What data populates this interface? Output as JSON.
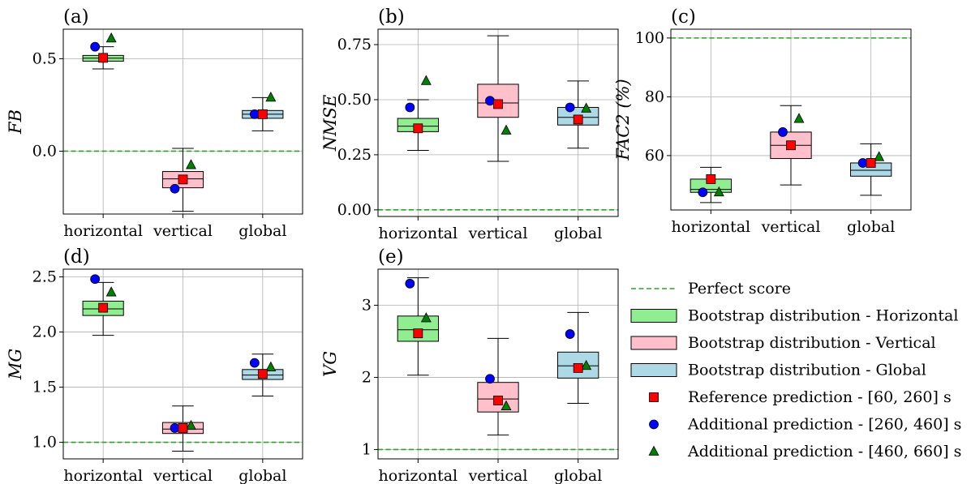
{
  "colors": {
    "horizontal_box": "#90ee90",
    "vertical_box": "#ffc0cb",
    "global_box": "#add8e6",
    "perfect_line": "#2ca02c",
    "reference_marker": "#ff0000",
    "additional_260_marker": "#0000ff",
    "additional_460_marker": "#008000",
    "grid": "#b0b0b0"
  },
  "legend": {
    "placement": "bottom-right",
    "entries": [
      {
        "key": "perfect",
        "label": "Perfect score",
        "style": "dashed-line",
        "color": "#2ca02c"
      },
      {
        "key": "horizontal",
        "label": "Bootstrap distribution - Horizontal",
        "style": "box",
        "color": "#90ee90"
      },
      {
        "key": "vertical",
        "label": "Bootstrap distribution - Vertical",
        "style": "box",
        "color": "#ffc0cb"
      },
      {
        "key": "global",
        "label": "Bootstrap distribution - Global",
        "style": "box",
        "color": "#add8e6"
      },
      {
        "key": "ref",
        "label": "Reference prediction - [60, 260] s",
        "style": "square",
        "color": "#ff0000"
      },
      {
        "key": "add1",
        "label": "Additional prediction - [260, 460] s",
        "style": "circle",
        "color": "#0000ff"
      },
      {
        "key": "add2",
        "label": "Additional prediction - [460, 660] s",
        "style": "triangle",
        "color": "#008000"
      }
    ]
  },
  "chart_data": [
    {
      "type": "box",
      "panel_label": "(a)",
      "ylabel": "FB",
      "categories": [
        "horizontal",
        "vertical",
        "global"
      ],
      "ylim": [
        -0.34,
        0.66
      ],
      "yticks": [
        0.0,
        0.5
      ],
      "ytick_labels": [
        "0.0",
        "0.5"
      ],
      "grid": true,
      "perfect_score": 0.0,
      "boxes": [
        {
          "whislo": 0.445,
          "q1": 0.487,
          "med": 0.503,
          "q3": 0.518,
          "whishi": 0.565
        },
        {
          "whislo": -0.325,
          "q1": -0.198,
          "med": -0.15,
          "q3": -0.11,
          "whishi": 0.015
        },
        {
          "whislo": 0.11,
          "q1": 0.178,
          "med": 0.2,
          "q3": 0.22,
          "whishi": 0.29
        }
      ],
      "reference_prediction": [
        0.505,
        -0.153,
        0.2
      ],
      "additional_prediction_260_460": [
        0.565,
        -0.203,
        0.2
      ],
      "additional_prediction_460_660": [
        0.61,
        -0.075,
        0.29
      ]
    },
    {
      "type": "box",
      "panel_label": "(b)",
      "ylabel": "NMSE",
      "categories": [
        "horizontal",
        "vertical",
        "global"
      ],
      "ylim": [
        -0.03,
        0.82
      ],
      "yticks": [
        0.0,
        0.25,
        0.5,
        0.75
      ],
      "ytick_labels": [
        "0.00",
        "0.25",
        "0.50",
        "0.75"
      ],
      "grid": true,
      "perfect_score": 0.0,
      "boxes": [
        {
          "whislo": 0.27,
          "q1": 0.355,
          "med": 0.38,
          "q3": 0.415,
          "whishi": 0.5
        },
        {
          "whislo": 0.22,
          "q1": 0.42,
          "med": 0.485,
          "q3": 0.57,
          "whishi": 0.79
        },
        {
          "whislo": 0.28,
          "q1": 0.385,
          "med": 0.42,
          "q3": 0.465,
          "whishi": 0.585
        }
      ],
      "reference_prediction": [
        0.37,
        0.48,
        0.41
      ],
      "additional_prediction_260_460": [
        0.465,
        0.495,
        0.465
      ],
      "additional_prediction_460_660": [
        0.585,
        0.36,
        0.46
      ]
    },
    {
      "type": "box",
      "panel_label": "(c)",
      "ylabel": "FAC2 (%)",
      "categories": [
        "horizontal",
        "vertical",
        "global"
      ],
      "ylim": [
        41.5,
        103
      ],
      "yticks": [
        60,
        80,
        100
      ],
      "ytick_labels": [
        "60",
        "80",
        "100"
      ],
      "grid": true,
      "perfect_score": 100,
      "boxes": [
        {
          "whislo": 44,
          "q1": 47.5,
          "med": 48.5,
          "q3": 52,
          "whishi": 56
        },
        {
          "whislo": 50,
          "q1": 59,
          "med": 63.5,
          "q3": 68,
          "whishi": 77
        },
        {
          "whislo": 46.5,
          "q1": 53,
          "med": 55,
          "q3": 57.5,
          "whishi": 64
        }
      ],
      "reference_prediction": [
        52,
        63.5,
        57.5
      ],
      "additional_prediction_260_460": [
        47.5,
        68,
        57.5
      ],
      "additional_prediction_460_660": [
        47.5,
        72.5,
        59.5
      ]
    },
    {
      "type": "box",
      "panel_label": "(d)",
      "ylabel": "MG",
      "categories": [
        "horizontal",
        "vertical",
        "global"
      ],
      "ylim": [
        0.85,
        2.57
      ],
      "yticks": [
        1.0,
        1.5,
        2.0,
        2.5
      ],
      "ytick_labels": [
        "1.0",
        "1.5",
        "2.0",
        "2.5"
      ],
      "grid": true,
      "perfect_score": 1.0,
      "boxes": [
        {
          "whislo": 1.97,
          "q1": 2.15,
          "med": 2.21,
          "q3": 2.28,
          "whishi": 2.45
        },
        {
          "whislo": 0.92,
          "q1": 1.08,
          "med": 1.12,
          "q3": 1.18,
          "whishi": 1.33
        },
        {
          "whislo": 1.42,
          "q1": 1.57,
          "med": 1.61,
          "q3": 1.66,
          "whishi": 1.8
        }
      ],
      "reference_prediction": [
        2.22,
        1.13,
        1.62
      ],
      "additional_prediction_260_460": [
        2.48,
        1.13,
        1.72
      ],
      "additional_prediction_460_660": [
        2.36,
        1.15,
        1.68
      ]
    },
    {
      "type": "box",
      "panel_label": "(e)",
      "ylabel": "VG",
      "categories": [
        "horizontal",
        "vertical",
        "global"
      ],
      "ylim": [
        0.87,
        3.5
      ],
      "yticks": [
        1,
        2,
        3
      ],
      "ytick_labels": [
        "1",
        "2",
        "3"
      ],
      "grid": true,
      "perfect_score": 1,
      "boxes": [
        {
          "whislo": 2.03,
          "q1": 2.5,
          "med": 2.66,
          "q3": 2.85,
          "whishi": 3.38
        },
        {
          "whislo": 1.2,
          "q1": 1.52,
          "med": 1.7,
          "q3": 1.93,
          "whishi": 2.54
        },
        {
          "whislo": 1.64,
          "q1": 1.99,
          "med": 2.16,
          "q3": 2.35,
          "whishi": 2.9
        }
      ],
      "reference_prediction": [
        2.61,
        1.68,
        2.13
      ],
      "additional_prediction_260_460": [
        3.3,
        1.98,
        2.6
      ],
      "additional_prediction_460_660": [
        2.82,
        1.6,
        2.16
      ]
    }
  ]
}
